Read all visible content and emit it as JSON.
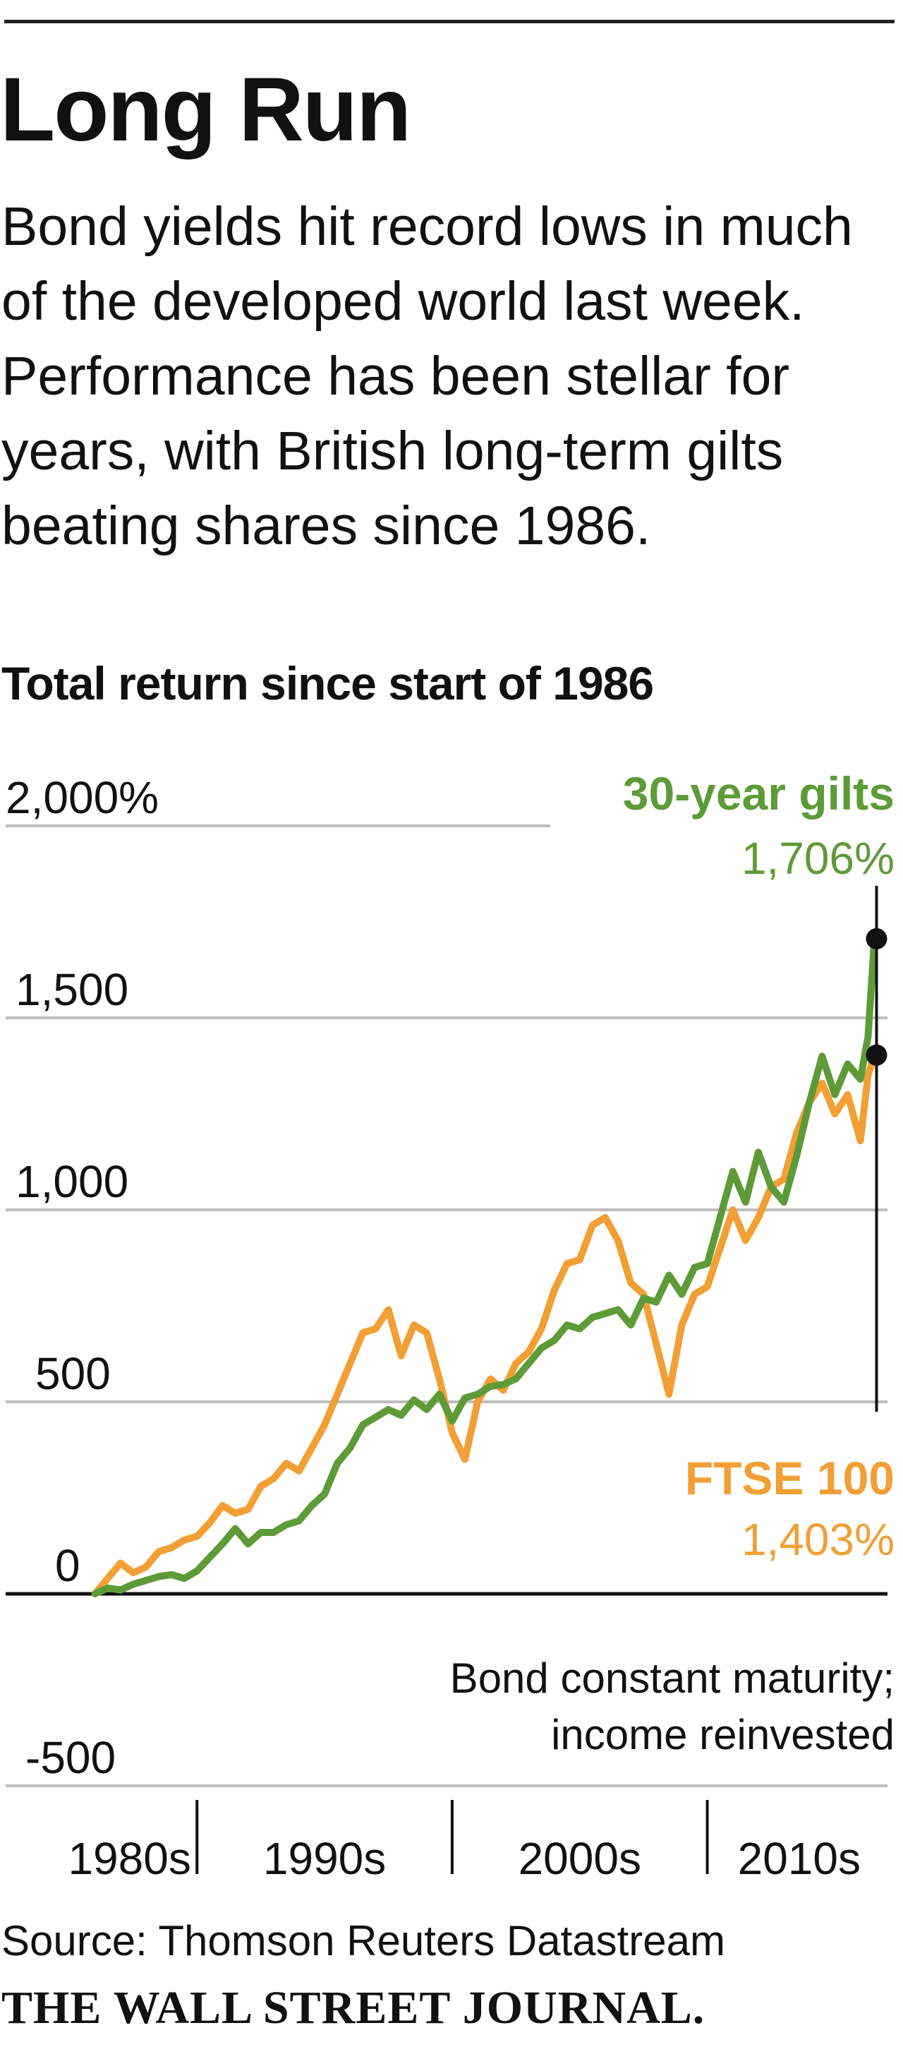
{
  "headline": "Long Run",
  "dek": "Bond yields hit record lows in much of the developed world last week. Performance has been stellar for years, with British long-term gilts beating shares since 1986.",
  "source": "Source: Thomson Reuters Datastream",
  "masthead": "THE WALL STREET JOURNAL.",
  "colors": {
    "gilts": "#5e9b38",
    "ftse": "#f29f35",
    "grid": "#bdbdbd",
    "text": "#111111"
  },
  "chart_data": {
    "type": "line",
    "title": "Total return since start of 1986",
    "ylim": [
      -500,
      2000
    ],
    "xlim": [
      1982.5,
      2017.2
    ],
    "grid": true,
    "y_ticks": [
      {
        "value": 2000,
        "label": "2,000%"
      },
      {
        "value": 1500,
        "label": "1,500"
      },
      {
        "value": 1000,
        "label": "1,000"
      },
      {
        "value": 500,
        "label": "500"
      },
      {
        "value": 0,
        "label": "0"
      },
      {
        "value": -500,
        "label": "-500"
      }
    ],
    "x_decades": [
      {
        "label": "1980s",
        "start": 1982.5,
        "end": 1990
      },
      {
        "label": "1990s",
        "start": 1990,
        "end": 2000
      },
      {
        "label": "2000s",
        "start": 2000,
        "end": 2010
      },
      {
        "label": "2010s",
        "start": 2010,
        "end": 2017.2
      }
    ],
    "note": [
      "Bond constant maturity;",
      "income reinvested"
    ],
    "series": [
      {
        "name": "30-year gilts",
        "end_label": "1,706%",
        "end_value": 1706,
        "x": [
          1986.0,
          1986.5,
          1987.0,
          1987.5,
          1988.0,
          1988.5,
          1989.0,
          1989.5,
          1990.0,
          1990.5,
          1991.0,
          1991.5,
          1992.0,
          1992.5,
          1993.0,
          1993.5,
          1994.0,
          1994.5,
          1995.0,
          1995.5,
          1996.0,
          1996.5,
          1997.0,
          1997.5,
          1998.0,
          1998.5,
          1999.0,
          1999.5,
          2000.0,
          2000.5,
          2001.0,
          2001.5,
          2002.0,
          2002.5,
          2003.0,
          2003.5,
          2004.0,
          2004.5,
          2005.0,
          2005.5,
          2006.0,
          2006.5,
          2007.0,
          2007.5,
          2008.0,
          2008.5,
          2009.0,
          2009.5,
          2010.0,
          2010.5,
          2011.0,
          2011.5,
          2012.0,
          2012.5,
          2013.0,
          2013.5,
          2014.0,
          2014.5,
          2015.0,
          2015.5,
          2016.0,
          2016.3,
          2016.55
        ],
        "values": [
          0,
          15,
          10,
          25,
          35,
          45,
          50,
          40,
          60,
          95,
          130,
          170,
          130,
          160,
          160,
          180,
          190,
          230,
          260,
          340,
          380,
          440,
          460,
          480,
          465,
          505,
          480,
          520,
          450,
          510,
          520,
          540,
          545,
          560,
          600,
          640,
          660,
          700,
          690,
          720,
          730,
          740,
          700,
          770,
          760,
          830,
          780,
          850,
          860,
          980,
          1100,
          1020,
          1150,
          1060,
          1020,
          1140,
          1280,
          1400,
          1300,
          1380,
          1340,
          1450,
          1706
        ]
      },
      {
        "name": "FTSE 100",
        "end_label": "1,403%",
        "end_value": 1403,
        "x": [
          1986.0,
          1986.5,
          1987.0,
          1987.5,
          1988.0,
          1988.5,
          1989.0,
          1989.5,
          1990.0,
          1990.5,
          1991.0,
          1991.5,
          1992.0,
          1992.5,
          1993.0,
          1993.5,
          1994.0,
          1994.5,
          1995.0,
          1995.5,
          1996.0,
          1996.5,
          1997.0,
          1997.5,
          1998.0,
          1998.5,
          1999.0,
          1999.5,
          2000.0,
          2000.5,
          2001.0,
          2001.5,
          2002.0,
          2002.5,
          2003.0,
          2003.5,
          2004.0,
          2004.5,
          2005.0,
          2005.5,
          2006.0,
          2006.5,
          2007.0,
          2007.5,
          2008.0,
          2008.5,
          2009.0,
          2009.5,
          2010.0,
          2010.5,
          2011.0,
          2011.5,
          2012.0,
          2012.5,
          2013.0,
          2013.5,
          2014.0,
          2014.5,
          2015.0,
          2015.5,
          2016.0,
          2016.3,
          2016.55
        ],
        "values": [
          0,
          40,
          80,
          55,
          70,
          110,
          120,
          140,
          150,
          185,
          230,
          210,
          220,
          280,
          300,
          340,
          320,
          380,
          440,
          520,
          600,
          680,
          690,
          740,
          620,
          700,
          680,
          560,
          420,
          350,
          500,
          560,
          530,
          600,
          630,
          690,
          790,
          860,
          870,
          960,
          980,
          920,
          810,
          780,
          650,
          520,
          700,
          780,
          800,
          900,
          1000,
          920,
          980,
          1060,
          1080,
          1200,
          1280,
          1330,
          1250,
          1300,
          1180,
          1350,
          1403
        ]
      }
    ]
  }
}
